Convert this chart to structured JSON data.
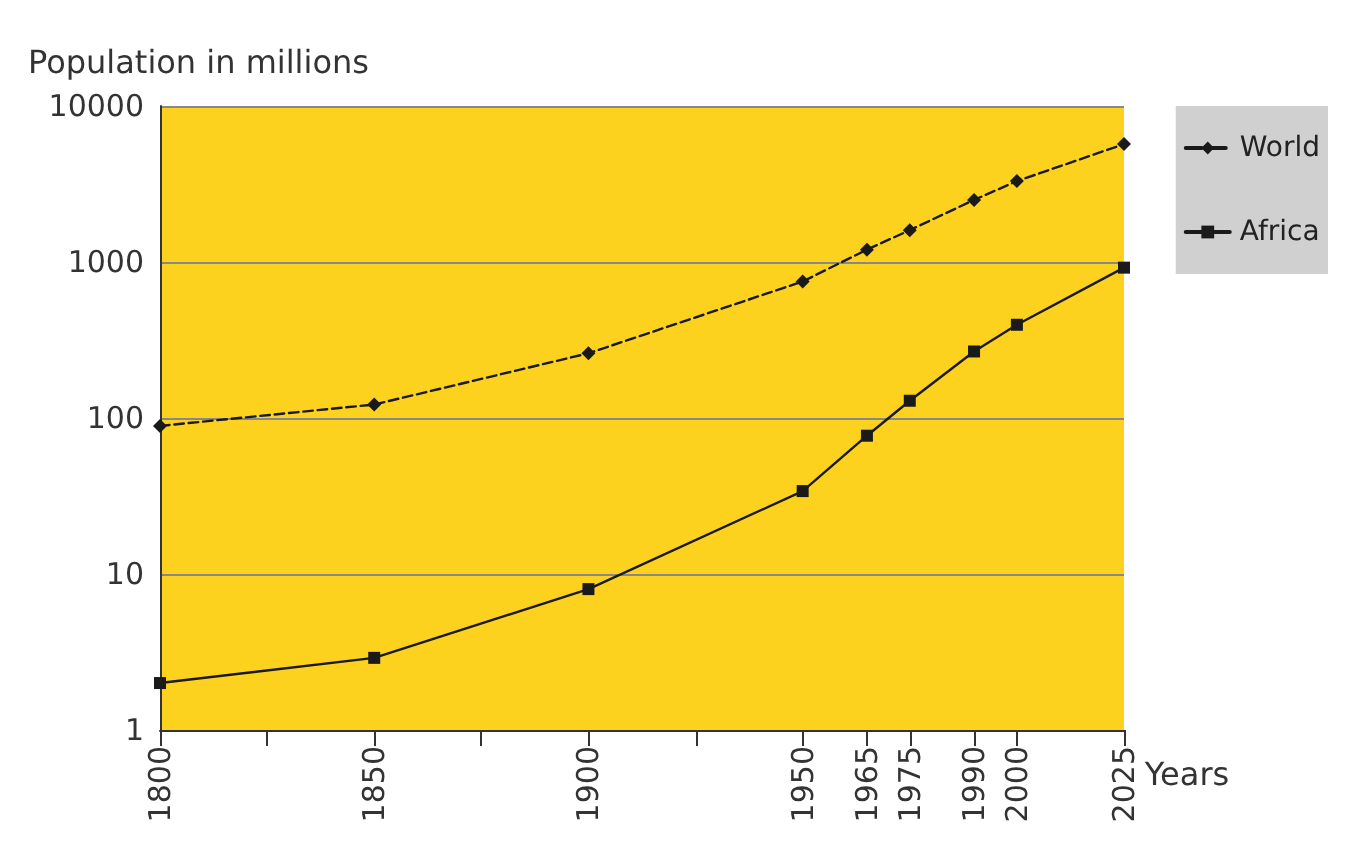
{
  "chart_data": {
    "type": "line",
    "ylabel": "Population in millions",
    "xlabel": "Years",
    "x": [
      1800,
      1850,
      1900,
      1950,
      1965,
      1975,
      1990,
      2000,
      2025
    ],
    "series": [
      {
        "name": "World",
        "color": "#1a1a1a",
        "line_style": "dashed",
        "marker": "diamond",
        "values": [
          89,
          122,
          260,
          750,
          1200,
          1600,
          2500,
          3300,
          5700
        ]
      },
      {
        "name": "Africa",
        "color": "#1a1a1a",
        "line_style": "solid",
        "marker": "square",
        "values": [
          2,
          2.9,
          8,
          34,
          77,
          129,
          267,
          396,
          920
        ]
      }
    ],
    "xlim": [
      1800,
      2025
    ],
    "xticks": [
      1800,
      {
        "value": 1825,
        "label": null
      },
      1850,
      {
        "value": 1875,
        "label": null
      },
      1900,
      {
        "value": 1925,
        "label": null
      },
      1950,
      1965,
      1975,
      1990,
      2000,
      2025
    ],
    "ylim": [
      1,
      10000
    ],
    "yticks": [
      1,
      10,
      100,
      1000,
      10000
    ],
    "log": "y",
    "grid": "y",
    "legend": "right"
  }
}
